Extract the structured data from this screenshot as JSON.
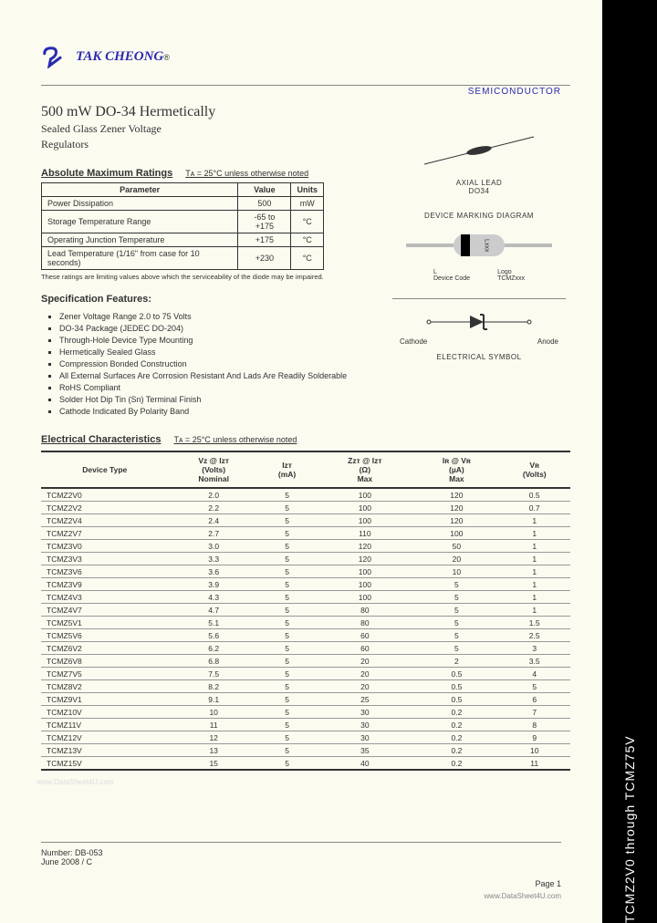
{
  "brand": "TAK CHEONG",
  "category": "SEMICONDUCTOR",
  "sidebar": "TCMZ2V0 through TCMZ75V",
  "title": "500 mW DO-34 Hermetically",
  "subtitle1": "Sealed Glass Zener Voltage",
  "subtitle2": "Regulators",
  "ratings": {
    "heading": "Absolute Maximum Ratings",
    "cond": "Tᴀ = 25°C unless otherwise noted",
    "cols": [
      "Parameter",
      "Value",
      "Units"
    ],
    "rows": [
      [
        "Power Dissipation",
        "500",
        "mW"
      ],
      [
        "Storage Temperature Range",
        "-65 to +175",
        "°C"
      ],
      [
        "Operating Junction Temperature",
        "+175",
        "°C"
      ],
      [
        "Lead Temperature (1/16\" from case for 10 seconds)",
        "+230",
        "°C"
      ]
    ],
    "foot": "These ratings are limiting values above which the serviceability of the diode may be impaired."
  },
  "features": {
    "heading": "Specification Features:",
    "items": [
      "Zener Voltage Range 2.0 to 75 Volts",
      "DO-34 Package (JEDEC DO-204)",
      "Through-Hole Device Type Mounting",
      "Hermetically Sealed Glass",
      "Compression Bonded Construction",
      "All External Surfaces Are Corrosion Resistant And Lads Are Readily Solderable",
      "RoHS Compliant",
      "Solder Hot Dip Tin (Sn) Terminal Finish",
      "Cathode Indicated By Polarity Band"
    ]
  },
  "diagrams": {
    "axial": "AXIAL LEAD\nDO34",
    "marking": "DEVICE MARKING DIAGRAM",
    "marking_label": "Lxxx",
    "legend_l": "L\nDevice Code",
    "legend_r": "Logo\nTCMZxxx",
    "cathode": "Cathode",
    "anode": "Anode",
    "symbol": "ELECTRICAL SYMBOL"
  },
  "ec": {
    "heading": "Electrical Characteristics",
    "cond": "Tᴀ = 25°C unless otherwise noted",
    "cols": [
      "Device Type",
      "Vᴢ @ Iᴢᴛ\n(Volts)\nNominal",
      "Iᴢᴛ\n(mA)",
      "Zᴢᴛ @ Iᴢᴛ\n(Ω)\nMax",
      "Iʀ @ Vʀ\n(µA)\nMax",
      "Vʀ\n(Volts)"
    ],
    "rows": [
      [
        "TCMZ2V0",
        "2.0",
        "5",
        "100",
        "120",
        "0.5"
      ],
      [
        "TCMZ2V2",
        "2.2",
        "5",
        "100",
        "120",
        "0.7"
      ],
      [
        "TCMZ2V4",
        "2.4",
        "5",
        "100",
        "120",
        "1"
      ],
      [
        "TCMZ2V7",
        "2.7",
        "5",
        "110",
        "100",
        "1"
      ],
      [
        "TCMZ3V0",
        "3.0",
        "5",
        "120",
        "50",
        "1"
      ],
      [
        "TCMZ3V3",
        "3.3",
        "5",
        "120",
        "20",
        "1"
      ],
      [
        "TCMZ3V6",
        "3.6",
        "5",
        "100",
        "10",
        "1"
      ],
      [
        "TCMZ3V9",
        "3.9",
        "5",
        "100",
        "5",
        "1"
      ],
      [
        "TCMZ4V3",
        "4.3",
        "5",
        "100",
        "5",
        "1"
      ],
      [
        "TCMZ4V7",
        "4.7",
        "5",
        "80",
        "5",
        "1"
      ],
      [
        "TCMZ5V1",
        "5.1",
        "5",
        "80",
        "5",
        "1.5"
      ],
      [
        "TCMZ5V6",
        "5.6",
        "5",
        "60",
        "5",
        "2.5"
      ],
      [
        "TCMZ6V2",
        "6.2",
        "5",
        "60",
        "5",
        "3"
      ],
      [
        "TCMZ6V8",
        "6.8",
        "5",
        "20",
        "2",
        "3.5"
      ],
      [
        "TCMZ7V5",
        "7.5",
        "5",
        "20",
        "0.5",
        "4"
      ],
      [
        "TCMZ8V2",
        "8.2",
        "5",
        "20",
        "0.5",
        "5"
      ],
      [
        "TCMZ9V1",
        "9.1",
        "5",
        "25",
        "0.5",
        "6"
      ],
      [
        "TCMZ10V",
        "10",
        "5",
        "30",
        "0.2",
        "7"
      ],
      [
        "TCMZ11V",
        "11",
        "5",
        "30",
        "0.2",
        "8"
      ],
      [
        "TCMZ12V",
        "12",
        "5",
        "30",
        "0.2",
        "9"
      ],
      [
        "TCMZ13V",
        "13",
        "5",
        "35",
        "0.2",
        "10"
      ],
      [
        "TCMZ15V",
        "15",
        "5",
        "40",
        "0.2",
        "11"
      ]
    ]
  },
  "footer": {
    "num": "Number: DB-053",
    "date": "June 2008 / C",
    "page": "Page 1",
    "url": "www.DataSheet4U.com"
  },
  "watermark": "www.DataSheet4U.com"
}
